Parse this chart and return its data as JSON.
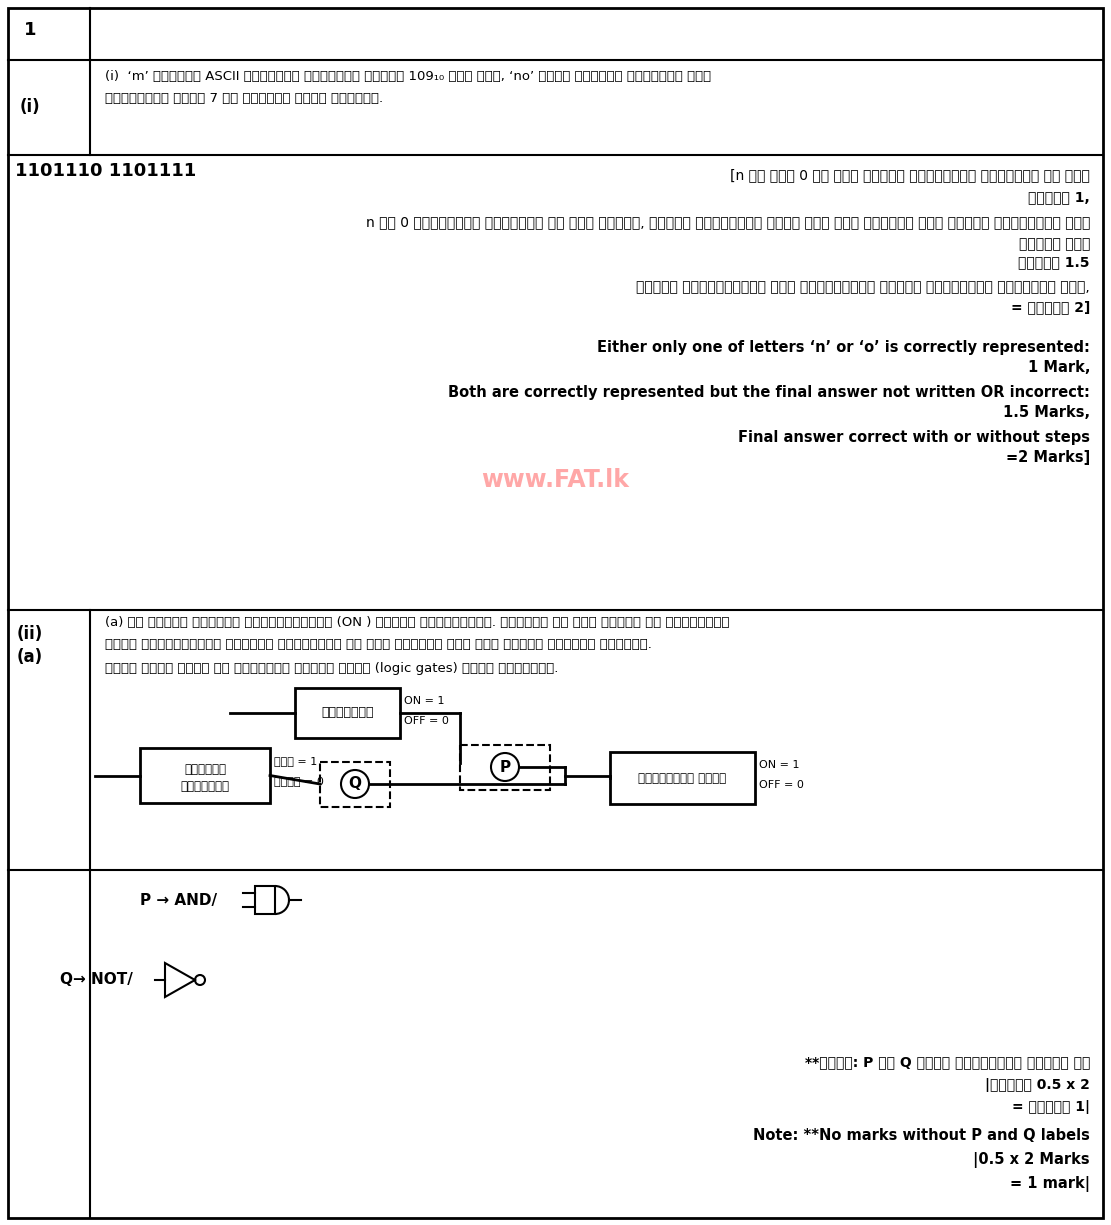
{
  "bg_color": "#ffffff",
  "title_row": "1",
  "q_i_label": "(i)",
  "q_i_text_line1": "(i)  ‘m’ අක්කරය ASCII වලුවේනි නිරුපණය වන්නේ 109₁₀ ලෝස නම්, ‘no’ වදන් දක්විම නිරුපණය එක්",
  "q_i_text_line2": "අක්කරයකට බිටු 7 ක් බටගින් යෝදා ලියන්න.",
  "answer_binary": "1101110 1101111",
  "sinh1": "[n හි හෝ් 0 හි අගය පමණක් නිවාරදිළ නිරුපණය වේ නම්",
  "sinh1b": "ලකුණු 1,",
  "sinh2": "n හා 0 නිවාරදිළ නිරුපණය කර ඇති නමුදු, අවසන් පිලිතුරා වරදි ලෝස ලිය ඇත්නම් හෝ් අවසන් පිලිතුරා ලිය",
  "sinh2b": "නොමටි නම්",
  "sinh3": "ලකුණු 1.5",
  "sinh4": "පියවර සහිතළළළළළළ හෝ් රහිතළළළළළ අවසන් පිලිතුරා නිවාරදි නම්,",
  "sinh4b": "= ලකුණු 2]",
  "eng1": "Either only one of letters ‘n’ or ‘o’ is correctly represented:",
  "eng1b": "1 Mark,",
  "eng2": "Both are correctly represented but the final answer not written OR incorrect:",
  "eng2b": "1.5 Marks,",
  "eng3": "Final answer correct with or without steps",
  "eng3b": "=2 Marks]",
  "watermark": "www.FAT.lk",
  "q_ii_label": "(ii)",
  "q_a_label": "(a)",
  "qii_line1": "(a) බල සටහන් සක්රිය ක්රියාත්මකට (ON ) පවතින අතරකුරුදි. ඊටක්වය හට අගය පවතින උස සිදිල්ම්",
  "qii_line2": "පංකළ ක්රියාත්මක කාරිමළ නිර්මාණය පූ පහන පෙන්වා ඇති සරල තර්කන පරිපථය සලකන්න.",
  "qii_line3": "ⓟසහⓎ සදහා ඇදාල වන තාර්කික ද්වාර එදුක (logic gates) ලියා දක්වන්න.",
  "sw_label": "ස්විටඨය",
  "sw_on": "ON = 1",
  "sw_off": "OFF = 0",
  "sen_label1": "ඊටක්වය",
  "sen_label2": "සංවේදකය",
  "sen_on": "ඇතු = 1",
  "sen_off": "විතු = 0",
  "p_label": "P",
  "q_label": "Q",
  "bulb_label": "සිදිල්ම් පංකු",
  "bulb_on": "ON = 1",
  "bulb_off": "OFF = 0",
  "and_text": "P → AND/ ",
  "not_text": "Q→ NOT/ ",
  "bsn1": "**සටහන: P සහ Q ලේබල නොමටිළළළ ලකුණු නට",
  "bsn2": "|ලකුණු 0.5 x 2",
  "bsn3": "= ලකුණු 1|",
  "ben1": "Note: **No marks without P and Q labels",
  "ben2": "|0.5 x 2 Marks",
  "ben3": "= 1 mark|"
}
